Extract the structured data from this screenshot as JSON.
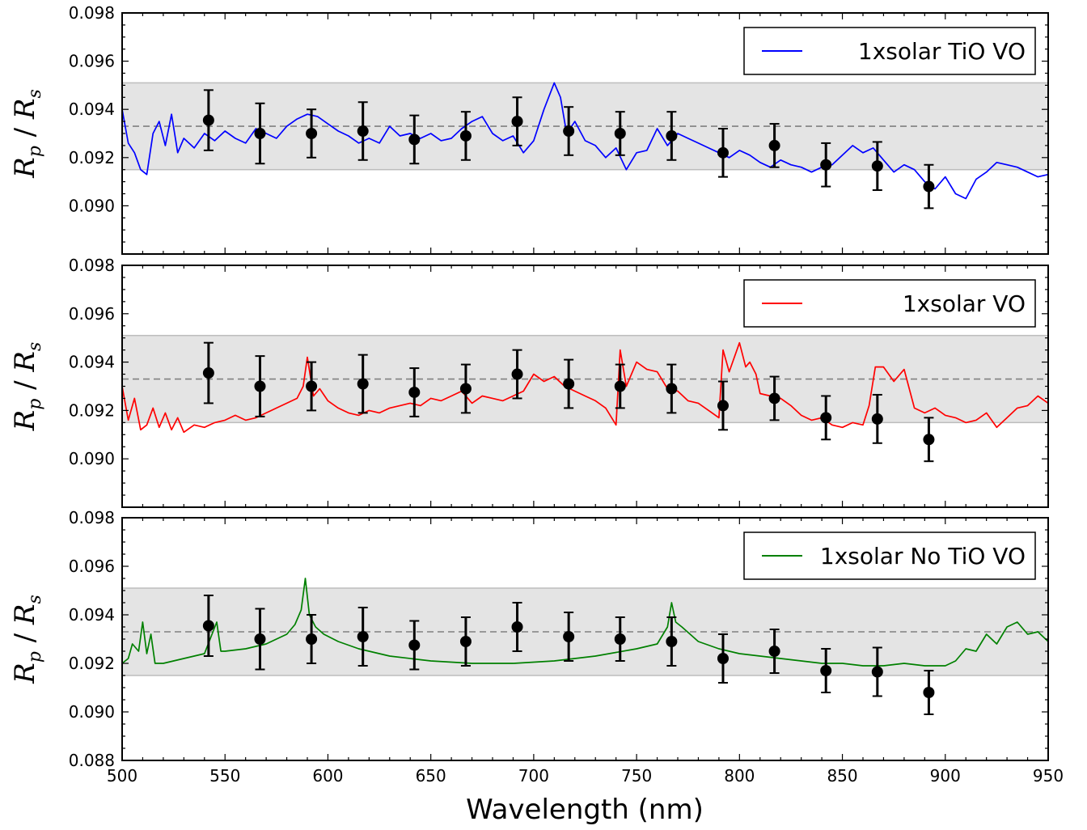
{
  "chart_data": {
    "type": "line",
    "xlabel": "Wavelength (nm)",
    "xlim": [
      500,
      950
    ],
    "x_ticks": [
      500,
      550,
      600,
      650,
      700,
      750,
      800,
      850,
      900,
      950
    ],
    "band": {
      "low": 0.0915,
      "high": 0.0951,
      "mid": 0.0933
    },
    "observations": {
      "x": [
        542,
        567,
        592,
        617,
        642,
        667,
        692,
        717,
        742,
        767,
        792,
        817,
        842,
        867,
        892
      ],
      "y": [
        0.09355,
        0.093,
        0.093,
        0.0931,
        0.09275,
        0.0929,
        0.0935,
        0.0931,
        0.093,
        0.0929,
        0.0922,
        0.0925,
        0.0917,
        0.09165,
        0.0908
      ],
      "err": [
        0.00125,
        0.00125,
        0.001,
        0.0012,
        0.001,
        0.001,
        0.001,
        0.001,
        0.0009,
        0.001,
        0.001,
        0.0009,
        0.0009,
        0.001,
        0.0009
      ]
    },
    "panels": [
      {
        "ylabel": "R_p / R_s",
        "ylim": [
          0.088,
          0.098
        ],
        "y_ticks": [
          "0.090",
          "0.092",
          "0.094",
          "0.096",
          "0.098"
        ],
        "y_tick_values": [
          0.09,
          0.092,
          0.094,
          0.096,
          0.098
        ],
        "series": [
          {
            "name": "1xsolar TiO VO",
            "color": "#0000ff",
            "x": [
              500,
              503,
              506,
              509,
              512,
              515,
              518,
              521,
              524,
              527,
              530,
              535,
              540,
              545,
              550,
              555,
              560,
              565,
              570,
              575,
              580,
              585,
              590,
              595,
              600,
              605,
              610,
              615,
              620,
              625,
              630,
              635,
              640,
              645,
              650,
              655,
              660,
              665,
              670,
              675,
              680,
              685,
              690,
              695,
              700,
              705,
              710,
              713,
              716,
              720,
              725,
              730,
              735,
              740,
              745,
              750,
              755,
              760,
              765,
              770,
              775,
              780,
              785,
              790,
              795,
              800,
              805,
              810,
              815,
              820,
              825,
              830,
              835,
              840,
              845,
              850,
              855,
              860,
              865,
              870,
              875,
              880,
              885,
              890,
              895,
              900,
              905,
              910,
              915,
              920,
              925,
              930,
              935,
              940,
              945,
              950
            ],
            "y": [
              0.094,
              0.0926,
              0.0922,
              0.0915,
              0.0913,
              0.093,
              0.0935,
              0.0925,
              0.0938,
              0.0922,
              0.0928,
              0.0924,
              0.093,
              0.0927,
              0.0931,
              0.0928,
              0.0926,
              0.0932,
              0.093,
              0.0928,
              0.0933,
              0.0936,
              0.0938,
              0.0937,
              0.0934,
              0.0931,
              0.0929,
              0.0926,
              0.0928,
              0.0926,
              0.0933,
              0.0929,
              0.093,
              0.0928,
              0.093,
              0.0927,
              0.0928,
              0.0932,
              0.0935,
              0.0937,
              0.093,
              0.0927,
              0.0929,
              0.0922,
              0.0927,
              0.094,
              0.0951,
              0.0945,
              0.093,
              0.0935,
              0.0927,
              0.0925,
              0.092,
              0.0924,
              0.0915,
              0.0922,
              0.0923,
              0.0932,
              0.0925,
              0.093,
              0.0928,
              0.0926,
              0.0924,
              0.0922,
              0.092,
              0.0923,
              0.0921,
              0.0918,
              0.0916,
              0.0919,
              0.0917,
              0.0916,
              0.0914,
              0.0916,
              0.0917,
              0.0921,
              0.0925,
              0.0922,
              0.0924,
              0.0919,
              0.0914,
              0.0917,
              0.0915,
              0.091,
              0.0907,
              0.0912,
              0.0905,
              0.0903,
              0.0911,
              0.0914,
              0.0918,
              0.0917,
              0.0916,
              0.0914,
              0.0912,
              0.0913
            ]
          }
        ]
      },
      {
        "ylabel": "R_p / R_s",
        "ylim": [
          0.088,
          0.098
        ],
        "y_ticks": [
          "0.090",
          "0.092",
          "0.094",
          "0.096",
          "0.098"
        ],
        "y_tick_values": [
          0.09,
          0.092,
          0.094,
          0.096,
          0.098
        ],
        "series": [
          {
            "name": "1xsolar VO",
            "color": "#ff0000",
            "x": [
              500,
              503,
              506,
              509,
              512,
              515,
              518,
              521,
              524,
              527,
              530,
              535,
              540,
              545,
              550,
              555,
              560,
              565,
              570,
              575,
              580,
              585,
              588,
              590,
              593,
              596,
              600,
              605,
              610,
              615,
              620,
              625,
              630,
              635,
              640,
              645,
              650,
              655,
              660,
              665,
              670,
              675,
              680,
              685,
              690,
              695,
              700,
              705,
              710,
              715,
              720,
              725,
              730,
              735,
              740,
              742,
              745,
              750,
              755,
              760,
              765,
              770,
              775,
              780,
              785,
              790,
              792,
              795,
              800,
              803,
              805,
              808,
              810,
              815,
              820,
              825,
              830,
              835,
              840,
              845,
              850,
              855,
              860,
              863,
              866,
              870,
              875,
              880,
              885,
              890,
              895,
              900,
              905,
              910,
              915,
              920,
              925,
              930,
              935,
              940,
              945,
              950
            ],
            "y": [
              0.093,
              0.0916,
              0.0925,
              0.0912,
              0.0914,
              0.0921,
              0.0913,
              0.0919,
              0.0912,
              0.0917,
              0.0911,
              0.0914,
              0.0913,
              0.0915,
              0.0916,
              0.0918,
              0.0916,
              0.0917,
              0.0919,
              0.0921,
              0.0923,
              0.0925,
              0.093,
              0.0942,
              0.0926,
              0.0929,
              0.0924,
              0.0921,
              0.0919,
              0.0918,
              0.092,
              0.0919,
              0.0921,
              0.0922,
              0.0923,
              0.0922,
              0.0925,
              0.0924,
              0.0926,
              0.0928,
              0.0923,
              0.0926,
              0.0925,
              0.0924,
              0.0926,
              0.0928,
              0.0935,
              0.0932,
              0.0934,
              0.093,
              0.0928,
              0.0926,
              0.0924,
              0.0921,
              0.0914,
              0.0945,
              0.093,
              0.094,
              0.0937,
              0.0936,
              0.0929,
              0.0928,
              0.0924,
              0.0923,
              0.092,
              0.0917,
              0.0945,
              0.0936,
              0.0948,
              0.0938,
              0.094,
              0.0935,
              0.0927,
              0.0926,
              0.0925,
              0.0922,
              0.0918,
              0.0916,
              0.0917,
              0.0914,
              0.0913,
              0.0915,
              0.0914,
              0.0922,
              0.0938,
              0.0938,
              0.0932,
              0.0937,
              0.0921,
              0.0919,
              0.0921,
              0.0918,
              0.0917,
              0.0915,
              0.0916,
              0.0919,
              0.0913,
              0.0917,
              0.0921,
              0.0922,
              0.0926,
              0.0923
            ]
          }
        ]
      },
      {
        "ylabel": "R_p / R_s",
        "ylim": [
          0.088,
          0.098
        ],
        "y_ticks": [
          "0.088",
          "0.090",
          "0.092",
          "0.094",
          "0.096",
          "0.098"
        ],
        "y_tick_values": [
          0.088,
          0.09,
          0.092,
          0.094,
          0.096,
          0.098
        ],
        "series": [
          {
            "name": "1xsolar No TiO VO",
            "color": "#008000",
            "x": [
              500,
              503,
              505,
              508,
              510,
              512,
              514,
              516,
              520,
              525,
              530,
              540,
              546,
              548,
              550,
              560,
              570,
              575,
              580,
              584,
              587,
              589,
              591,
              594,
              598,
              605,
              615,
              630,
              650,
              670,
              690,
              710,
              730,
              750,
              760,
              765,
              767,
              769,
              772,
              776,
              780,
              790,
              800,
              810,
              820,
              830,
              840,
              850,
              860,
              870,
              880,
              890,
              900,
              905,
              910,
              915,
              920,
              925,
              930,
              935,
              940,
              945,
              950
            ],
            "y": [
              0.092,
              0.0922,
              0.0928,
              0.0925,
              0.0937,
              0.0924,
              0.0932,
              0.092,
              0.092,
              0.0921,
              0.0922,
              0.0924,
              0.0937,
              0.0925,
              0.0925,
              0.0926,
              0.0928,
              0.093,
              0.0932,
              0.0936,
              0.0942,
              0.0955,
              0.094,
              0.0935,
              0.0932,
              0.0929,
              0.0926,
              0.0923,
              0.0921,
              0.092,
              0.092,
              0.0921,
              0.0923,
              0.0926,
              0.0928,
              0.0935,
              0.0945,
              0.0937,
              0.0935,
              0.0932,
              0.0929,
              0.0926,
              0.0924,
              0.0923,
              0.0922,
              0.0921,
              0.092,
              0.092,
              0.0919,
              0.0919,
              0.092,
              0.0919,
              0.0919,
              0.0921,
              0.0926,
              0.0925,
              0.0932,
              0.0928,
              0.0935,
              0.0937,
              0.0932,
              0.0933,
              0.0929
            ]
          }
        ]
      }
    ]
  }
}
